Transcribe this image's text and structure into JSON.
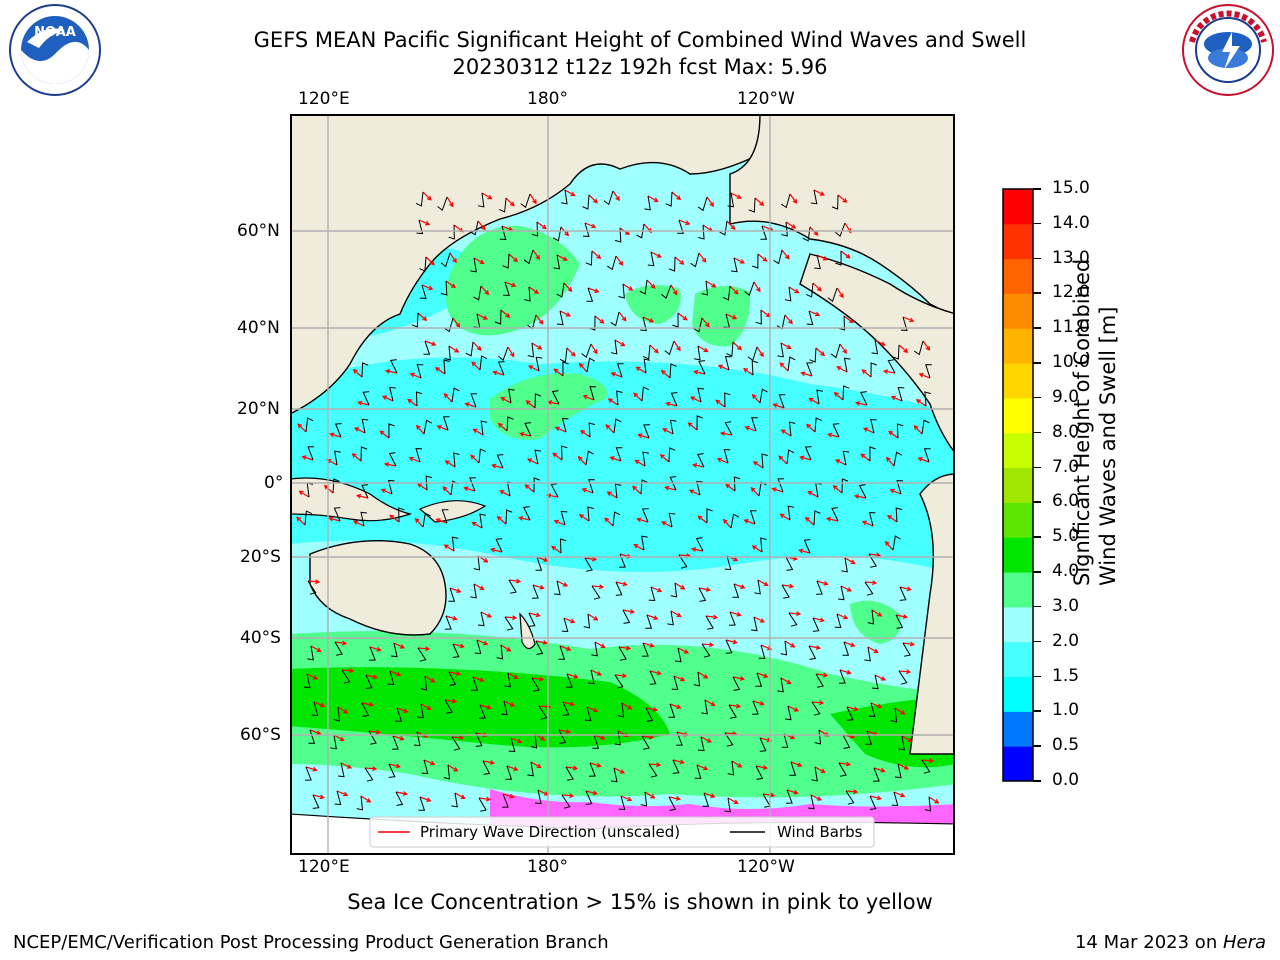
{
  "header": {
    "title_line1": "GEFS MEAN Pacific Significant Height of Combined Wind Waves and Swell",
    "title_line2": "20230312 t12z 192h fcst   Max: 5.96"
  },
  "logos": {
    "left_text": "NOAA",
    "left_ring_text": "NATIONAL OCEANIC AND ATMOSPHERIC ADMINISTRATION · U.S. DEPARTMENT OF COMMERCE",
    "right_ring_text": "NATIONAL WEATHER SERVICE"
  },
  "axes": {
    "top_ticks": [
      "120°E",
      "180°",
      "120°W"
    ],
    "bottom_ticks": [
      "120°E",
      "180°",
      "120°W"
    ],
    "left_ticks": [
      "60°N",
      "40°N",
      "20°N",
      "0°",
      "20°S",
      "40°S",
      "60°S"
    ]
  },
  "legend": {
    "wave_label": "Primary Wave Direction (unscaled)",
    "barb_label": "Wind Barbs",
    "wave_color": "#ff0000",
    "barb_color": "#000000"
  },
  "colorbar": {
    "label_line1": "Significant Height of Combined",
    "label_line2": "Wind Waves and Swell [m]",
    "ticks": [
      "0.0",
      "0.5",
      "1.0",
      "1.5",
      "2.0",
      "3.0",
      "4.0",
      "5.0",
      "6.0",
      "7.0",
      "8.0",
      "9.0",
      "10.0",
      "11.0",
      "12.0",
      "13.0",
      "14.0",
      "15.0"
    ],
    "colors": [
      "#0000ff",
      "#0078ff",
      "#00ffff",
      "#46ffff",
      "#a0ffff",
      "#50ff8c",
      "#00e600",
      "#5ae600",
      "#a0e600",
      "#c8ff00",
      "#ffff00",
      "#ffd700",
      "#ffb400",
      "#ff8c00",
      "#ff6400",
      "#ff3200",
      "#ff0000"
    ]
  },
  "map_colors": {
    "land": "#efecdc",
    "ocean_2_3": "#a0ffff",
    "ocean_1_5_2": "#46ffff",
    "ocean_3_4": "#50ff8c",
    "ocean_4_5": "#00e600",
    "ocean_low": "#0000ff",
    "ocean_0_5_1": "#0078ff",
    "sea_ice": "#ff66ff"
  },
  "notes": {
    "sea_ice": "Sea Ice Concentration > 15% is shown in pink to yellow"
  },
  "footer": {
    "left": "NCEP/EMC/Verification Post Processing Product Generation Branch",
    "right_date": "14 Mar 2023 on ",
    "right_host": "Hera"
  }
}
